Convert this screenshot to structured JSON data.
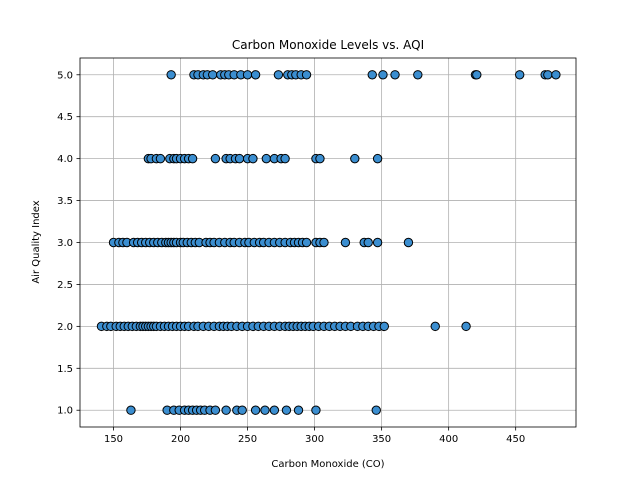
{
  "chart_data": {
    "type": "scatter",
    "title": "Carbon Monoxide Levels vs. AQI",
    "xlabel": "Carbon Monoxide (CO)",
    "ylabel": "Air Quality Index",
    "xlim": [
      125,
      495
    ],
    "ylim": [
      0.8,
      5.2
    ],
    "xticks": [
      150,
      200,
      250,
      300,
      350,
      400,
      450
    ],
    "yticks": [
      1.0,
      1.5,
      2.0,
      2.5,
      3.0,
      3.5,
      4.0,
      4.5,
      5.0
    ],
    "grid": true,
    "marker_color": "#3b8ed0",
    "marker_edge": "#000000",
    "series": [
      {
        "points": [
          [
            193,
            5
          ],
          [
            210,
            5
          ],
          [
            213,
            5
          ],
          [
            217,
            5
          ],
          [
            220,
            5
          ],
          [
            224,
            5
          ],
          [
            230,
            5
          ],
          [
            233,
            5
          ],
          [
            236,
            5
          ],
          [
            240,
            5
          ],
          [
            245,
            5
          ],
          [
            250,
            5
          ],
          [
            256,
            5
          ],
          [
            273,
            5
          ],
          [
            280,
            5
          ],
          [
            283,
            5
          ],
          [
            286,
            5
          ],
          [
            290,
            5
          ],
          [
            294,
            5
          ],
          [
            343,
            5
          ],
          [
            351,
            5
          ],
          [
            360,
            5
          ],
          [
            377,
            5
          ],
          [
            420,
            5
          ],
          [
            421,
            5
          ],
          [
            453,
            5
          ],
          [
            472,
            5
          ],
          [
            474,
            5
          ],
          [
            480,
            5
          ],
          [
            176,
            4
          ],
          [
            178,
            4
          ],
          [
            182,
            4
          ],
          [
            185,
            4
          ],
          [
            192,
            4
          ],
          [
            195,
            4
          ],
          [
            197,
            4
          ],
          [
            200,
            4
          ],
          [
            203,
            4
          ],
          [
            206,
            4
          ],
          [
            209,
            4
          ],
          [
            226,
            4
          ],
          [
            234,
            4
          ],
          [
            237,
            4
          ],
          [
            241,
            4
          ],
          [
            244,
            4
          ],
          [
            250,
            4
          ],
          [
            254,
            4
          ],
          [
            264,
            4
          ],
          [
            270,
            4
          ],
          [
            275,
            4
          ],
          [
            278,
            4
          ],
          [
            301,
            4
          ],
          [
            304,
            4
          ],
          [
            330,
            4
          ],
          [
            347,
            4
          ],
          [
            150,
            3
          ],
          [
            154,
            3
          ],
          [
            157,
            3
          ],
          [
            160,
            3
          ],
          [
            165,
            3
          ],
          [
            168,
            3
          ],
          [
            171,
            3
          ],
          [
            174,
            3
          ],
          [
            177,
            3
          ],
          [
            180,
            3
          ],
          [
            183,
            3
          ],
          [
            186,
            3
          ],
          [
            189,
            3
          ],
          [
            191,
            3
          ],
          [
            193,
            3
          ],
          [
            195,
            3
          ],
          [
            197,
            3
          ],
          [
            200,
            3
          ],
          [
            202,
            3
          ],
          [
            205,
            3
          ],
          [
            208,
            3
          ],
          [
            211,
            3
          ],
          [
            214,
            3
          ],
          [
            219,
            3
          ],
          [
            222,
            3
          ],
          [
            225,
            3
          ],
          [
            229,
            3
          ],
          [
            233,
            3
          ],
          [
            237,
            3
          ],
          [
            240,
            3
          ],
          [
            244,
            3
          ],
          [
            248,
            3
          ],
          [
            251,
            3
          ],
          [
            255,
            3
          ],
          [
            259,
            3
          ],
          [
            262,
            3
          ],
          [
            266,
            3
          ],
          [
            270,
            3
          ],
          [
            274,
            3
          ],
          [
            278,
            3
          ],
          [
            282,
            3
          ],
          [
            285,
            3
          ],
          [
            288,
            3
          ],
          [
            291,
            3
          ],
          [
            294,
            3
          ],
          [
            301,
            3
          ],
          [
            304,
            3
          ],
          [
            307,
            3
          ],
          [
            323,
            3
          ],
          [
            337,
            3
          ],
          [
            340,
            3
          ],
          [
            347,
            3
          ],
          [
            370,
            3
          ],
          [
            141,
            2
          ],
          [
            145,
            2
          ],
          [
            148,
            2
          ],
          [
            152,
            2
          ],
          [
            155,
            2
          ],
          [
            158,
            2
          ],
          [
            161,
            2
          ],
          [
            164,
            2
          ],
          [
            167,
            2
          ],
          [
            170,
            2
          ],
          [
            172,
            2
          ],
          [
            174,
            2
          ],
          [
            176,
            2
          ],
          [
            178,
            2
          ],
          [
            180,
            2
          ],
          [
            182,
            2
          ],
          [
            185,
            2
          ],
          [
            188,
            2
          ],
          [
            191,
            2
          ],
          [
            194,
            2
          ],
          [
            197,
            2
          ],
          [
            200,
            2
          ],
          [
            203,
            2
          ],
          [
            206,
            2
          ],
          [
            210,
            2
          ],
          [
            213,
            2
          ],
          [
            217,
            2
          ],
          [
            221,
            2
          ],
          [
            225,
            2
          ],
          [
            229,
            2
          ],
          [
            232,
            2
          ],
          [
            235,
            2
          ],
          [
            238,
            2
          ],
          [
            242,
            2
          ],
          [
            246,
            2
          ],
          [
            250,
            2
          ],
          [
            254,
            2
          ],
          [
            258,
            2
          ],
          [
            262,
            2
          ],
          [
            266,
            2
          ],
          [
            270,
            2
          ],
          [
            274,
            2
          ],
          [
            278,
            2
          ],
          [
            281,
            2
          ],
          [
            284,
            2
          ],
          [
            287,
            2
          ],
          [
            290,
            2
          ],
          [
            293,
            2
          ],
          [
            296,
            2
          ],
          [
            299,
            2
          ],
          [
            303,
            2
          ],
          [
            307,
            2
          ],
          [
            311,
            2
          ],
          [
            315,
            2
          ],
          [
            319,
            2
          ],
          [
            323,
            2
          ],
          [
            327,
            2
          ],
          [
            332,
            2
          ],
          [
            336,
            2
          ],
          [
            340,
            2
          ],
          [
            344,
            2
          ],
          [
            348,
            2
          ],
          [
            352,
            2
          ],
          [
            390,
            2
          ],
          [
            413,
            2
          ],
          [
            163,
            1
          ],
          [
            190,
            1
          ],
          [
            195,
            1
          ],
          [
            199,
            1
          ],
          [
            203,
            1
          ],
          [
            206,
            1
          ],
          [
            209,
            1
          ],
          [
            212,
            1
          ],
          [
            215,
            1
          ],
          [
            218,
            1
          ],
          [
            222,
            1
          ],
          [
            226,
            1
          ],
          [
            234,
            1
          ],
          [
            242,
            1
          ],
          [
            246,
            1
          ],
          [
            256,
            1
          ],
          [
            263,
            1
          ],
          [
            270,
            1
          ],
          [
            279,
            1
          ],
          [
            288,
            1
          ],
          [
            301,
            1
          ],
          [
            346,
            1
          ]
        ]
      }
    ]
  }
}
